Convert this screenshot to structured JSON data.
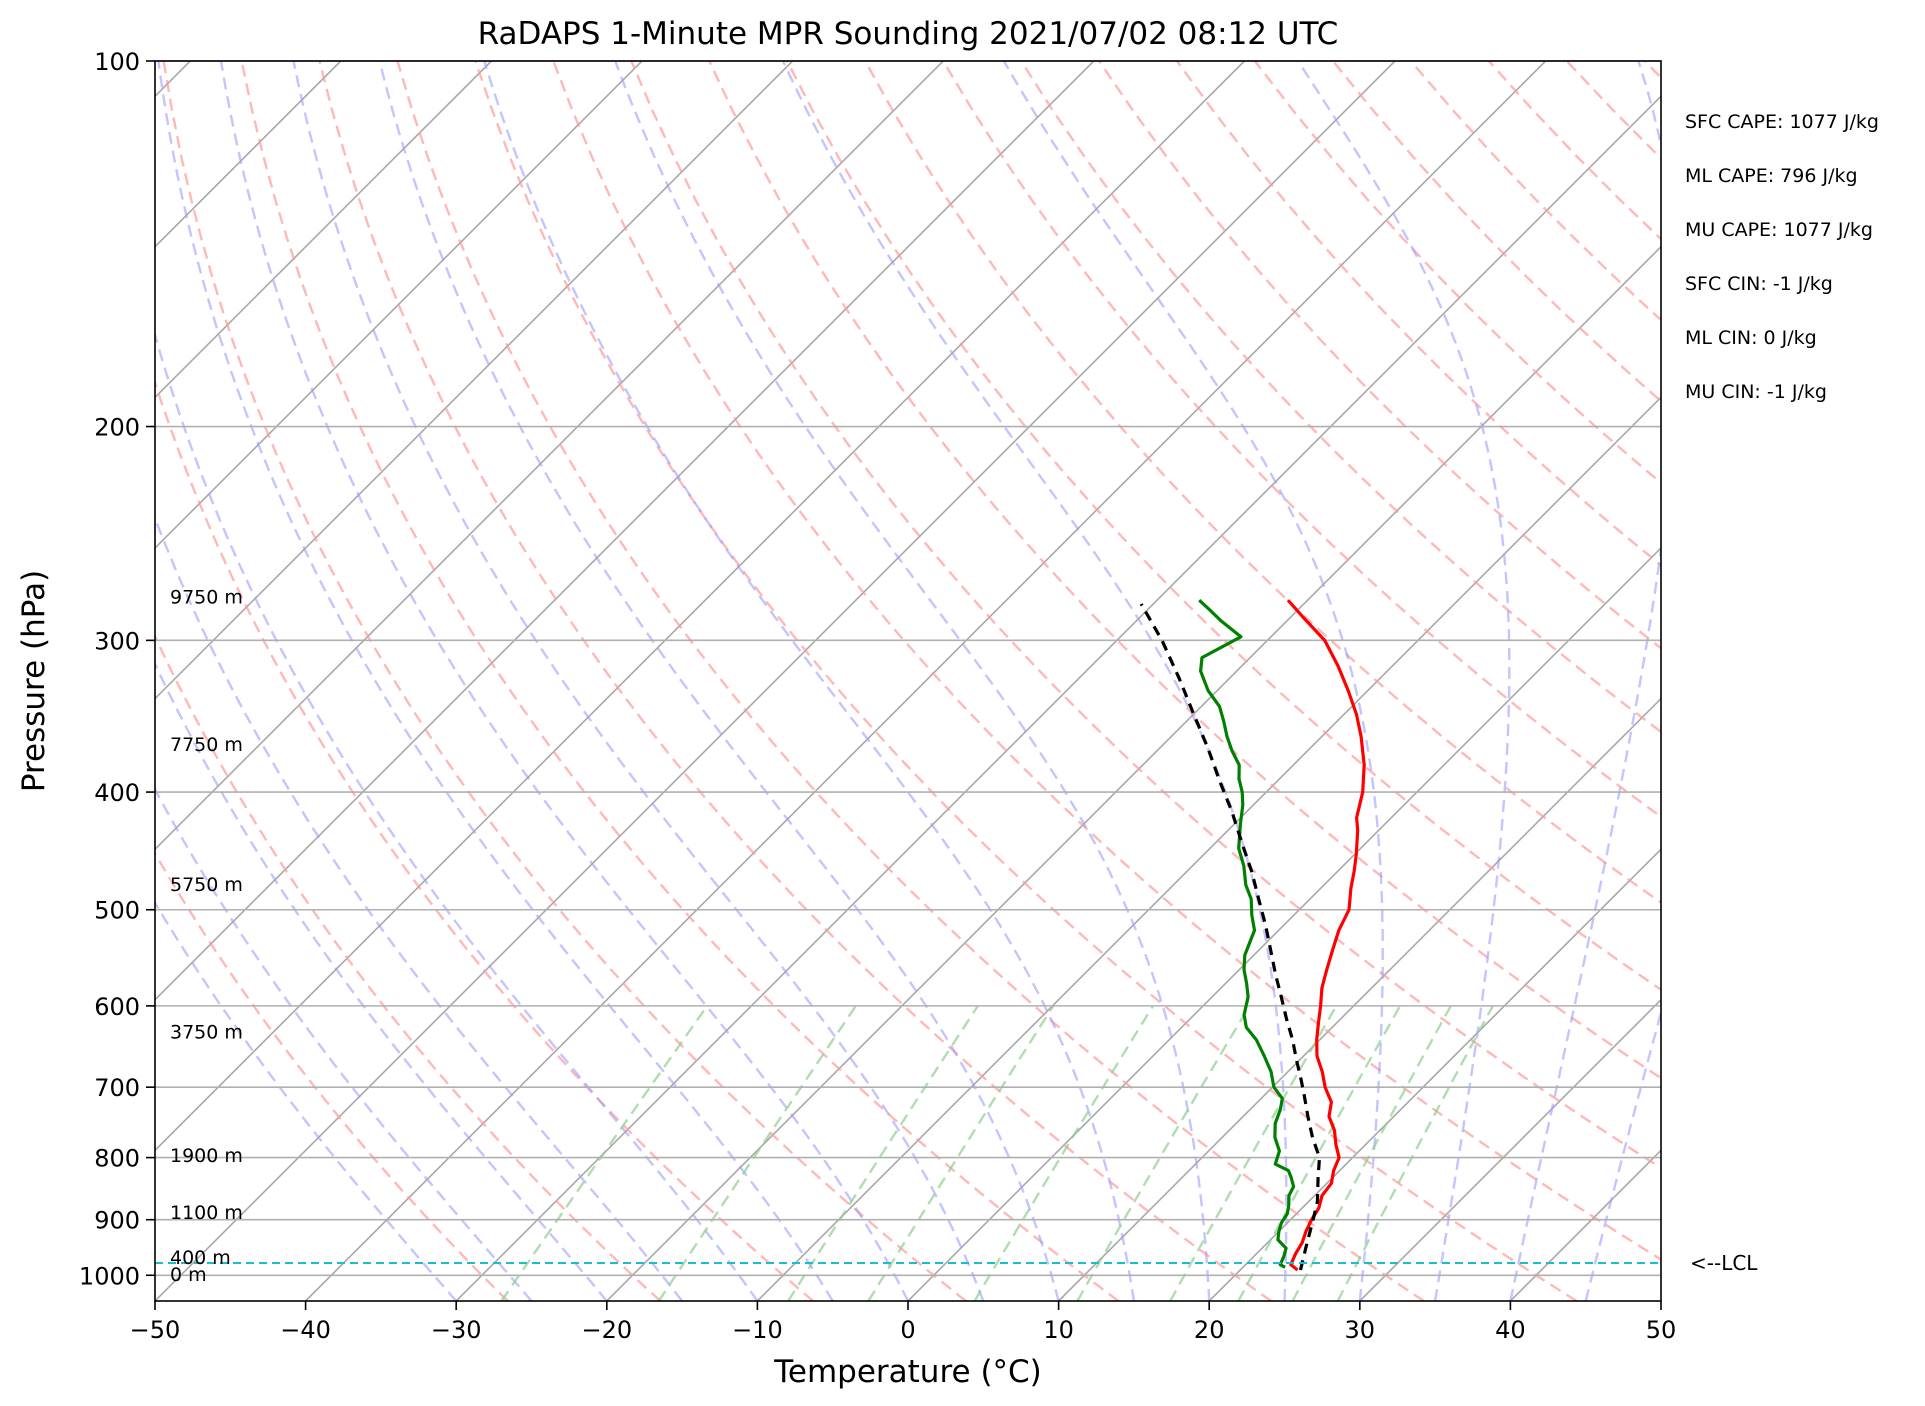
{
  "chart_data": {
    "type": "line",
    "title": "RaDAPS 1-Minute MPR Sounding 2021/07/02 08:12 UTC",
    "xlabel": "Temperature (°C)",
    "ylabel": "Pressure (hPa)",
    "xlim": [
      -50,
      50
    ],
    "ylim": [
      1050,
      100
    ],
    "y_scale": "log",
    "x_ticks": [
      -50,
      -40,
      -30,
      -20,
      -10,
      0,
      10,
      20,
      30,
      40,
      50
    ],
    "x_tick_labels": [
      "−50",
      "−40",
      "−30",
      "−20",
      "−10",
      "0",
      "10",
      "20",
      "30",
      "40",
      "50"
    ],
    "y_ticks": [
      100,
      200,
      300,
      400,
      500,
      600,
      700,
      800,
      900,
      1000
    ],
    "y_tick_labels": [
      "100",
      "200",
      "300",
      "400",
      "500",
      "600",
      "700",
      "800",
      "900",
      "1000"
    ],
    "skew": "skew-T",
    "grid": true,
    "series": [
      {
        "name": "",
        "color": "#ff0000",
        "points": [
          [
            23.8,
            990
          ],
          [
            23,
            980
          ],
          [
            22.6,
            960
          ],
          [
            22.3,
            940
          ],
          [
            21.8,
            920
          ],
          [
            21.4,
            900
          ],
          [
            21.1,
            880
          ],
          [
            20.5,
            860
          ],
          [
            20.3,
            840
          ],
          [
            19.6,
            820
          ],
          [
            19.1,
            800
          ],
          [
            18,
            780
          ],
          [
            17,
            760
          ],
          [
            15.7,
            740
          ],
          [
            14.9,
            720
          ],
          [
            14.2,
            710
          ],
          [
            13.5,
            700
          ],
          [
            12.3,
            680
          ],
          [
            10.9,
            660
          ],
          [
            9.8,
            640
          ],
          [
            8.8,
            620
          ],
          [
            7.8,
            600
          ],
          [
            6.7,
            580
          ],
          [
            5.8,
            560
          ],
          [
            4.9,
            540
          ],
          [
            4.0,
            520
          ],
          [
            3.3,
            500
          ],
          [
            2.0,
            480
          ],
          [
            1.1,
            465
          ],
          [
            0.1,
            450
          ],
          [
            -1.4,
            430
          ],
          [
            -2.3,
            420
          ],
          [
            -3.6,
            400
          ],
          [
            -5.3,
            380
          ],
          [
            -7.4,
            360
          ],
          [
            -9.2,
            345
          ],
          [
            -11.3,
            330
          ],
          [
            -13.6,
            315
          ],
          [
            -16.2,
            300
          ],
          [
            -19.2,
            287
          ],
          [
            -21.3,
            278
          ]
        ]
      },
      {
        "name": "",
        "color": "#008000",
        "points": [
          [
            22.8,
            985
          ],
          [
            22.3,
            980
          ],
          [
            22,
            965
          ],
          [
            21.6,
            950
          ],
          [
            20.5,
            935
          ],
          [
            20,
            920
          ],
          [
            19.6,
            905
          ],
          [
            19.4,
            890
          ],
          [
            18.9,
            875
          ],
          [
            18.3,
            860
          ],
          [
            18,
            845
          ],
          [
            17.2,
            830
          ],
          [
            16.6,
            820
          ],
          [
            15.3,
            810
          ],
          [
            14.7,
            790
          ],
          [
            13.5,
            770
          ],
          [
            12.6,
            750
          ],
          [
            12.0,
            730
          ],
          [
            11.4,
            715
          ],
          [
            10.1,
            700
          ],
          [
            8.9,
            680
          ],
          [
            7.4,
            660
          ],
          [
            5.8,
            640
          ],
          [
            4.3,
            625
          ],
          [
            3.3,
            610
          ],
          [
            2.4,
            590
          ],
          [
            1.4,
            575
          ],
          [
            0.3,
            560
          ],
          [
            -0.6,
            545
          ],
          [
            -1.2,
            530
          ],
          [
            -1.6,
            520
          ],
          [
            -2.8,
            505
          ],
          [
            -3.9,
            490
          ],
          [
            -5.2,
            477
          ],
          [
            -6.6,
            460
          ],
          [
            -8.1,
            445
          ],
          [
            -9.6,
            425
          ],
          [
            -10.7,
            410
          ],
          [
            -11.6,
            400
          ],
          [
            -12.7,
            390
          ],
          [
            -13.6,
            380
          ],
          [
            -15.0,
            370
          ],
          [
            -16.3,
            360
          ],
          [
            -17.5,
            350
          ],
          [
            -18.8,
            340
          ],
          [
            -20.6,
            330
          ],
          [
            -22.4,
            318
          ],
          [
            -23.2,
            310
          ],
          [
            -22.0,
            298
          ],
          [
            -24.4,
            289
          ],
          [
            -25.9,
            283
          ],
          [
            -27.2,
            278
          ]
        ]
      },
      {
        "name": "",
        "color": "#000000",
        "dashed": true,
        "points": [
          [
            24,
            990
          ],
          [
            22.9,
            950
          ],
          [
            21.5,
            900
          ],
          [
            20.6,
            870
          ],
          [
            19,
            830
          ],
          [
            17.8,
            800
          ],
          [
            16,
            770
          ],
          [
            14.3,
            740
          ],
          [
            12.6,
            710
          ],
          [
            11.4,
            690
          ],
          [
            9.8,
            665
          ],
          [
            8.2,
            640
          ],
          [
            6.4,
            615
          ],
          [
            4.6,
            590
          ],
          [
            2.7,
            565
          ],
          [
            0.8,
            540
          ],
          [
            -1.2,
            515
          ],
          [
            -3.4,
            490
          ],
          [
            -5.7,
            465
          ],
          [
            -8.3,
            440
          ],
          [
            -11.0,
            415
          ],
          [
            -13.8,
            392
          ],
          [
            -16.8,
            368
          ],
          [
            -20.0,
            345
          ],
          [
            -23.4,
            322
          ],
          [
            -27.0,
            300
          ],
          [
            -30.8,
            280
          ]
        ]
      }
    ],
    "lcl": {
      "pressure": 977,
      "label": "<--LCL"
    },
    "height_labels": [
      {
        "text": "9750 m",
        "p": 276
      },
      {
        "text": "7750 m",
        "p": 365
      },
      {
        "text": "5750 m",
        "p": 476
      },
      {
        "text": "3750 m",
        "p": 630
      },
      {
        "text": "1900 m",
        "p": 796
      },
      {
        "text": "1100 m",
        "p": 887
      },
      {
        "text": "400 m",
        "p": 966
      },
      {
        "text": "0 m",
        "p": 998
      }
    ],
    "annotations": [
      "SFC CAPE: 1077 J/kg",
      "ML CAPE: 796 J/kg",
      "MU CAPE: 1077 J/kg",
      "SFC CIN: -1 J/kg",
      "ML CIN: 0 J/kg",
      "MU CIN: -1 J/kg"
    ]
  }
}
